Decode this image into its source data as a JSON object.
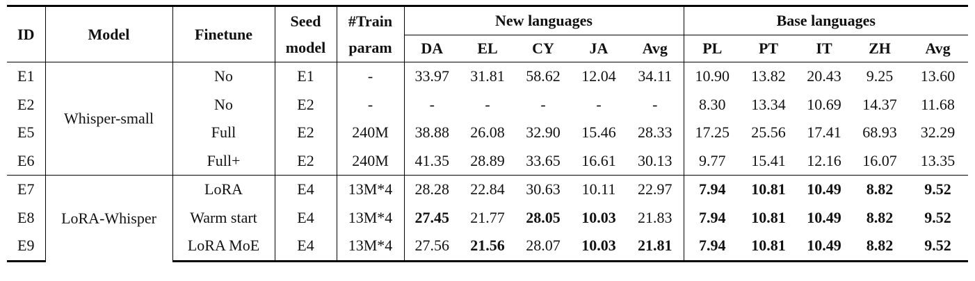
{
  "header": {
    "columns": [
      "ID",
      "Model",
      "Finetune",
      "Seed model",
      "#Train param"
    ],
    "groups": [
      {
        "title": "New languages",
        "columns": [
          "DA",
          "EL",
          "CY",
          "JA",
          "Avg"
        ]
      },
      {
        "title": "Base languages",
        "columns": [
          "PL",
          "PT",
          "IT",
          "ZH",
          "Avg"
        ]
      }
    ]
  },
  "table": {
    "groups": [
      {
        "model": "Whisper-small",
        "rows": [
          [
            "E1",
            "No",
            "E1",
            "-",
            "33.97",
            "31.81",
            "58.62",
            "12.04",
            "34.11",
            "10.90",
            "13.82",
            "20.43",
            "9.25",
            "13.60"
          ],
          [
            "E2",
            "No",
            "E2",
            "-",
            "-",
            "-",
            "-",
            "-",
            "-",
            "8.30",
            "13.34",
            "10.69",
            "14.37",
            "11.68"
          ],
          [
            "E5",
            "Full",
            "E2",
            "240M",
            "38.88",
            "26.08",
            "32.90",
            "15.46",
            "28.33",
            "17.25",
            "25.56",
            "17.41",
            "68.93",
            "32.29"
          ],
          [
            "E6",
            "Full+",
            "E2",
            "240M",
            "41.35",
            "28.89",
            "33.65",
            "16.61",
            "30.13",
            "9.77",
            "15.41",
            "12.16",
            "16.07",
            "13.35"
          ]
        ]
      },
      {
        "model": "LoRA-Whisper",
        "rows": [
          [
            "E7",
            "LoRA",
            "E4",
            "13M*4",
            "28.28",
            "22.84",
            "30.63",
            "10.11",
            "22.97",
            "7.94",
            "10.81",
            "10.49",
            "8.82",
            "9.52"
          ],
          [
            "E8",
            "Warm start",
            "E4",
            "13M*4",
            "27.45",
            "21.77",
            "28.05",
            "10.03",
            "21.83",
            "7.94",
            "10.81",
            "10.49",
            "8.82",
            "9.52"
          ],
          [
            "E9",
            "LoRA MoE",
            "E4",
            "13M*4",
            "27.56",
            "21.56",
            "28.07",
            "10.03",
            "21.81",
            "7.94",
            "10.81",
            "10.49",
            "8.82",
            "9.52"
          ]
        ]
      }
    ]
  }
}
